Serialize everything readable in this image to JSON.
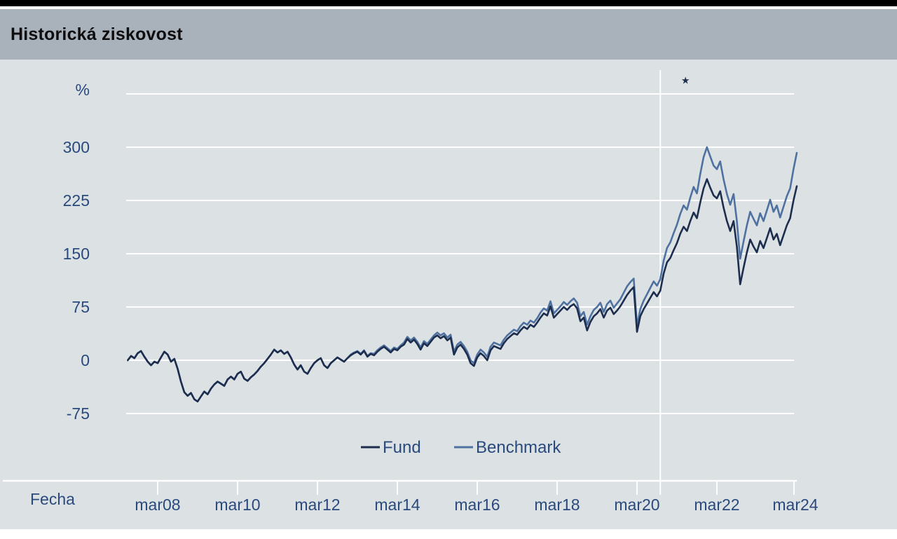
{
  "app": {
    "title_bar": "Historická ziskovost"
  },
  "colors": {
    "top_bar": "#000000",
    "header_background": "#a9b2bb",
    "panel_background": "#dce1e4",
    "grid": "#ffffff",
    "axis_label": "#2a4a7d",
    "title_text": "#0d0d0f",
    "fund_line": "#1c2d4d",
    "benchmark_line": "#4e71a0"
  },
  "chart_data": {
    "type": "line",
    "title": "Historická ziskovost",
    "xlabel": "Fecha",
    "ylabel": "%",
    "grid": true,
    "legend_position": "bottom-center",
    "ylim": [
      -75,
      375
    ],
    "y_gridlines": [
      375,
      300,
      225,
      150,
      75,
      0,
      -75
    ],
    "y_tick_labels": [
      "300",
      "225",
      "150",
      "75",
      "0",
      "-75"
    ],
    "x_tick_labels": [
      "mar08",
      "mar10",
      "mar12",
      "mar14",
      "mar16",
      "mar18",
      "mar20",
      "mar22",
      "mar24"
    ],
    "x_tick_years": [
      2008.1667,
      2010.1667,
      2012.1667,
      2014.1667,
      2016.1667,
      2018.1667,
      2020.1667,
      2022.1667,
      2024.1667
    ],
    "start_year": 2007.4167,
    "months_per_point": 1,
    "reference_line_year": 2020.75,
    "annotation": {
      "symbol": "★",
      "x_year": 2021.38,
      "value": 395
    },
    "series": [
      {
        "name": "Fund",
        "color": "#1c2d4d",
        "values": [
          0,
          6,
          3,
          10,
          13,
          5,
          -2,
          -7,
          -2,
          -4,
          4,
          12,
          8,
          -2,
          2,
          -12,
          -30,
          -45,
          -50,
          -46,
          -55,
          -58,
          -51,
          -44,
          -48,
          -40,
          -34,
          -30,
          -33,
          -36,
          -27,
          -23,
          -27,
          -19,
          -16,
          -26,
          -29,
          -24,
          -20,
          -15,
          -9,
          -4,
          2,
          8,
          15,
          11,
          14,
          9,
          12,
          4,
          -6,
          -13,
          -7,
          -16,
          -19,
          -11,
          -4,
          0,
          3,
          -7,
          -11,
          -4,
          0,
          4,
          1,
          -2,
          3,
          7,
          10,
          12,
          8,
          13,
          5,
          9,
          7,
          12,
          16,
          19,
          15,
          11,
          16,
          14,
          19,
          22,
          30,
          25,
          29,
          23,
          15,
          24,
          20,
          26,
          32,
          35,
          31,
          34,
          28,
          32,
          8,
          18,
          22,
          16,
          8,
          -4,
          -8,
          4,
          10,
          6,
          0,
          14,
          20,
          18,
          16,
          24,
          30,
          34,
          38,
          36,
          42,
          47,
          44,
          50,
          47,
          53,
          60,
          66,
          63,
          76,
          60,
          65,
          70,
          75,
          71,
          76,
          79,
          73,
          55,
          60,
          42,
          54,
          62,
          66,
          72,
          60,
          70,
          74,
          65,
          70,
          76,
          84,
          92,
          98,
          103,
          40,
          62,
          72,
          80,
          88,
          96,
          90,
          98,
          122,
          138,
          144,
          155,
          165,
          178,
          188,
          182,
          196,
          208,
          200,
          222,
          242,
          255,
          243,
          232,
          228,
          238,
          215,
          196,
          182,
          196,
          160,
          107,
          130,
          152,
          170,
          160,
          152,
          168,
          158,
          172,
          186,
          170,
          178,
          162,
          176,
          190,
          200,
          225,
          245
        ]
      },
      {
        "name": "Benchmark",
        "color": "#4e71a0",
        "values": [
          0,
          6,
          3,
          10,
          13,
          5,
          -2,
          -7,
          -2,
          -4,
          4,
          12,
          8,
          -2,
          2,
          -12,
          -30,
          -45,
          -50,
          -46,
          -55,
          -58,
          -51,
          -44,
          -48,
          -40,
          -34,
          -30,
          -33,
          -36,
          -27,
          -23,
          -27,
          -19,
          -16,
          -26,
          -29,
          -24,
          -20,
          -15,
          -9,
          -4,
          2,
          8,
          15,
          11,
          14,
          9,
          12,
          4,
          -6,
          -13,
          -7,
          -16,
          -19,
          -11,
          -4,
          0,
          3,
          -7,
          -11,
          -4,
          0,
          4,
          1,
          -2,
          3,
          8,
          11,
          13,
          9,
          14,
          6,
          10,
          9,
          14,
          18,
          21,
          17,
          13,
          18,
          16,
          21,
          25,
          33,
          28,
          32,
          26,
          18,
          27,
          23,
          29,
          35,
          39,
          35,
          38,
          32,
          36,
          12,
          22,
          26,
          20,
          12,
          0,
          -4,
          8,
          15,
          11,
          5,
          19,
          25,
          23,
          21,
          29,
          35,
          39,
          43,
          41,
          48,
          53,
          50,
          56,
          53,
          59,
          67,
          73,
          70,
          83,
          66,
          71,
          76,
          82,
          78,
          83,
          87,
          81,
          62,
          68,
          50,
          62,
          71,
          75,
          81,
          68,
          79,
          84,
          74,
          80,
          86,
          95,
          104,
          110,
          115,
          48,
          72,
          84,
          93,
          102,
          111,
          105,
          114,
          140,
          158,
          166,
          179,
          191,
          206,
          218,
          212,
          229,
          244,
          235,
          262,
          286,
          300,
          287,
          274,
          269,
          280,
          255,
          234,
          219,
          234,
          196,
          143,
          167,
          190,
          209,
          199,
          190,
          207,
          196,
          211,
          226,
          209,
          218,
          201,
          216,
          231,
          242,
          269,
          292
        ]
      }
    ]
  }
}
